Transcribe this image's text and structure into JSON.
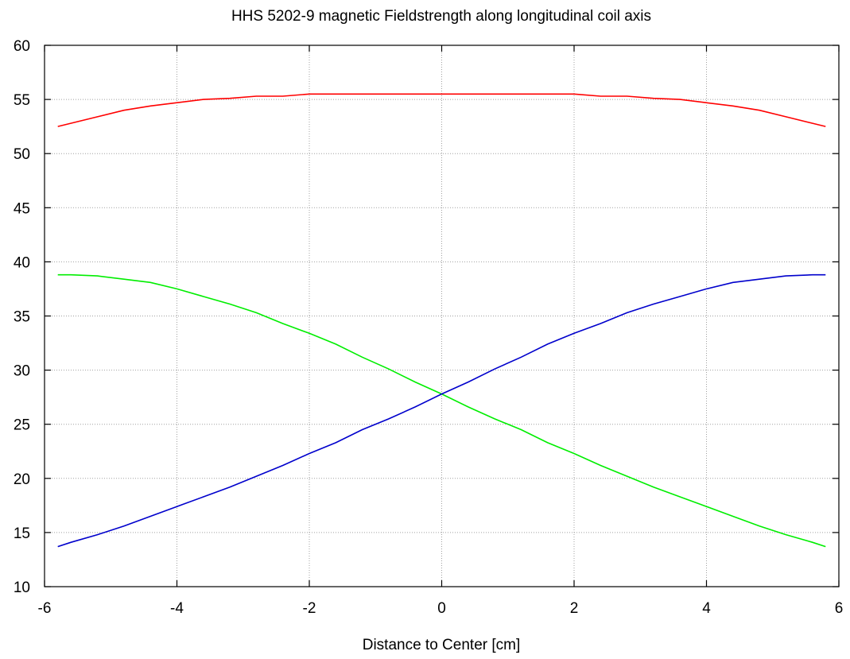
{
  "chart_data": {
    "type": "line",
    "title": "HHS 5202-9 magnetic Fieldstrength along longitudinal coil axis",
    "xlabel": "Distance to Center [cm]",
    "ylabel": "",
    "xlim": [
      -6,
      6
    ],
    "ylim": [
      10,
      60
    ],
    "xticks": [
      -6,
      -4,
      -2,
      0,
      2,
      4,
      6
    ],
    "yticks": [
      10,
      15,
      20,
      25,
      30,
      35,
      40,
      45,
      50,
      55,
      60
    ],
    "grid": true,
    "series": [
      {
        "color": "#ff0000",
        "x": [
          -5.8,
          -5.2,
          -4.8,
          -4.4,
          -4.0,
          -3.6,
          -3.2,
          -2.8,
          -2.4,
          -2.0,
          -1.6,
          -1.2,
          -0.8,
          -0.4,
          0.0,
          0.4,
          0.8,
          1.2,
          1.6,
          2.0,
          2.4,
          2.8,
          3.2,
          3.6,
          4.0,
          4.4,
          4.8,
          5.2,
          5.8
        ],
        "y": [
          52.5,
          53.4,
          54.0,
          54.4,
          54.7,
          55.0,
          55.1,
          55.3,
          55.3,
          55.5,
          55.5,
          55.5,
          55.5,
          55.5,
          55.5,
          55.5,
          55.5,
          55.5,
          55.5,
          55.5,
          55.3,
          55.3,
          55.1,
          55.0,
          54.7,
          54.4,
          54.0,
          53.4,
          52.5
        ]
      },
      {
        "color": "#00ee00",
        "x": [
          -5.8,
          -5.6,
          -5.2,
          -4.8,
          -4.4,
          -4.0,
          -3.6,
          -3.2,
          -2.8,
          -2.4,
          -2.0,
          -1.6,
          -1.2,
          -0.8,
          -0.4,
          0.0,
          0.4,
          0.8,
          1.2,
          1.6,
          2.0,
          2.4,
          2.8,
          3.2,
          3.6,
          4.0,
          4.4,
          4.8,
          5.2,
          5.6,
          5.8
        ],
        "y": [
          38.8,
          38.8,
          38.7,
          38.4,
          38.1,
          37.5,
          36.8,
          36.1,
          35.3,
          34.3,
          33.4,
          32.4,
          31.2,
          30.1,
          28.9,
          27.8,
          26.6,
          25.5,
          24.5,
          23.3,
          22.3,
          21.2,
          20.2,
          19.2,
          18.3,
          17.4,
          16.5,
          15.6,
          14.8,
          14.1,
          13.7
        ]
      },
      {
        "color": "#0000cc",
        "x": [
          -5.8,
          -5.6,
          -5.2,
          -4.8,
          -4.4,
          -4.0,
          -3.6,
          -3.2,
          -2.8,
          -2.4,
          -2.0,
          -1.6,
          -1.2,
          -0.8,
          -0.4,
          0.0,
          0.4,
          0.8,
          1.2,
          1.6,
          2.0,
          2.4,
          2.8,
          3.2,
          3.6,
          4.0,
          4.4,
          4.8,
          5.2,
          5.6,
          5.8
        ],
        "y": [
          13.7,
          14.1,
          14.8,
          15.6,
          16.5,
          17.4,
          18.3,
          19.2,
          20.2,
          21.2,
          22.3,
          23.3,
          24.5,
          25.5,
          26.6,
          27.8,
          28.9,
          30.1,
          31.2,
          32.4,
          33.4,
          34.3,
          35.3,
          36.1,
          36.8,
          37.5,
          38.1,
          38.4,
          38.7,
          38.8,
          38.8
        ]
      }
    ]
  }
}
